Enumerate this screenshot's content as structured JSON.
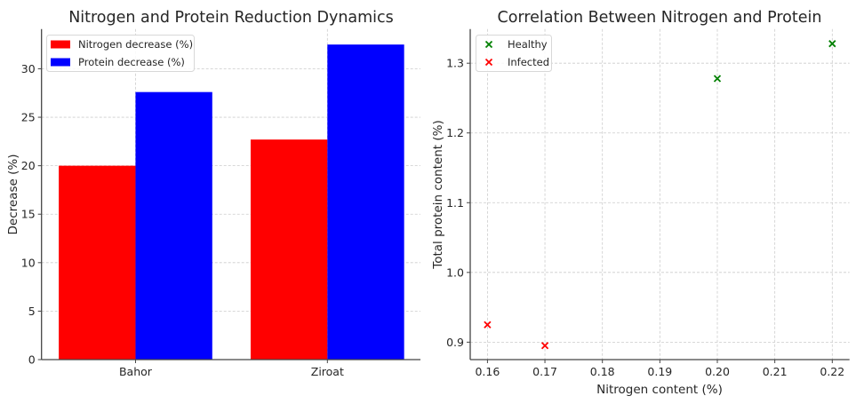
{
  "chart_data": [
    {
      "type": "bar",
      "title": "Nitrogen and Protein Reduction Dynamics",
      "xlabel": "",
      "ylabel": "Decrease (%)",
      "categories": [
        "Bahor",
        "Ziroat"
      ],
      "series": [
        {
          "name": "Nitrogen decrease (%)",
          "color": "#ff0000",
          "values": [
            20.0,
            22.7
          ]
        },
        {
          "name": "Protein decrease (%)",
          "color": "#0000ff",
          "values": [
            27.6,
            32.5
          ]
        }
      ],
      "ylim": [
        0,
        34.1
      ],
      "yticks": [
        0,
        5,
        10,
        15,
        20,
        25,
        30
      ],
      "grid": true,
      "legend_position": "top-left"
    },
    {
      "type": "scatter",
      "title": "Correlation Between Nitrogen and Protein",
      "xlabel": "Nitrogen content (%)",
      "ylabel": "Total protein content (%)",
      "series": [
        {
          "name": "Healthy",
          "color": "#008000",
          "marker": "x",
          "x": [
            0.2,
            0.22
          ],
          "y": [
            1.278,
            1.328
          ]
        },
        {
          "name": "Infected",
          "color": "#ff0000",
          "marker": "x",
          "x": [
            0.16,
            0.17
          ],
          "y": [
            0.925,
            0.895
          ]
        }
      ],
      "xlim": [
        0.157,
        0.223
      ],
      "ylim": [
        0.875,
        1.349
      ],
      "xticks": [
        "0.16",
        "0.17",
        "0.18",
        "0.19",
        "0.20",
        "0.21",
        "0.22"
      ],
      "yticks": [
        "0.9",
        "1.0",
        "1.1",
        "1.2",
        "1.3"
      ],
      "grid": true,
      "legend_position": "top-left"
    }
  ]
}
